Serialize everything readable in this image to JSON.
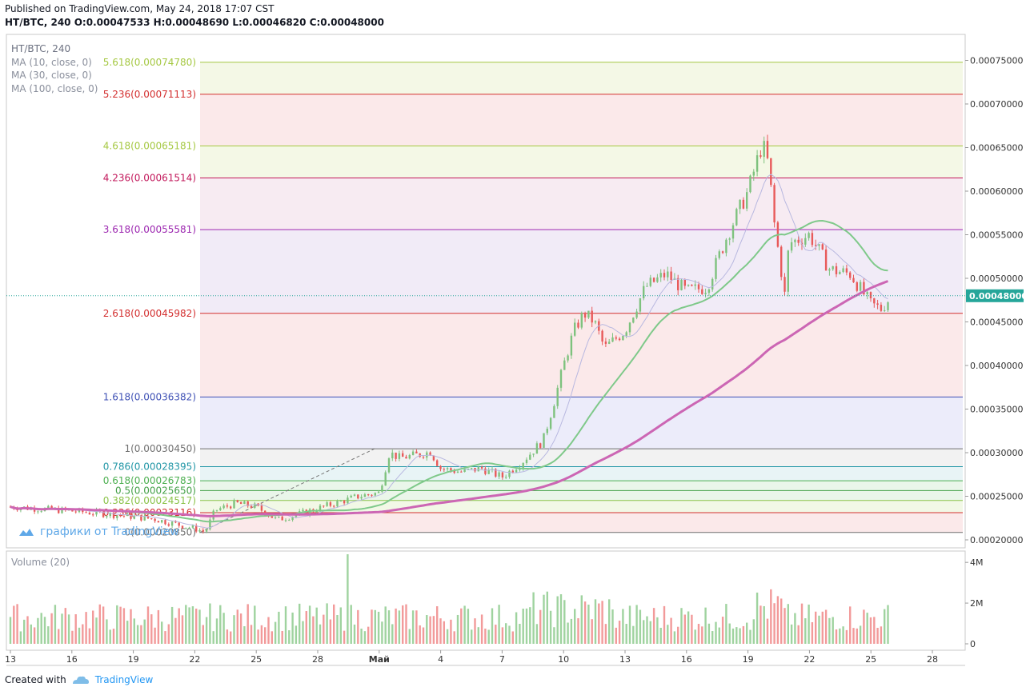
{
  "header": {
    "published": "Published on TradingView.com, May 24, 2018 17:07 CST",
    "ohlc_line": "HT/BTC, 240  O:0.00047533 H:0.00048690 L:0.00046820 C:0.00048000"
  },
  "legend": {
    "symbol": "HT/BTC, 240",
    "ma10": "MA (10, close, 0)",
    "ma30": "MA (30, close, 0)",
    "ma100": "MA (100, close, 0)",
    "volume": "Volume (20)"
  },
  "watermark": "графики от TradingView",
  "footer": {
    "created_with": "Created with",
    "brand": "TradingView"
  },
  "colors": {
    "up": "#7ec27e",
    "down": "#e85a5a",
    "ma10": "#b8b8e0",
    "ma30": "#7fc98a",
    "ma100": "#cc66b4",
    "last_price": "#26a69a"
  },
  "chart_data": {
    "type": "candlestick",
    "symbol": "HT/BTC",
    "interval": "240",
    "y_axis_ticks": [
      "0.00075000",
      "0.00070000",
      "0.00065000",
      "0.00060000",
      "0.00055000",
      "0.00050000",
      "0.00045000",
      "0.00040000",
      "0.00035000",
      "0.00030000",
      "0.00025000",
      "0.00020000"
    ],
    "ylim": [
      0.00019,
      0.00077
    ],
    "x_axis_ticks": [
      "13",
      "16",
      "19",
      "22",
      "25",
      "28",
      "Май",
      "4",
      "7",
      "10",
      "13",
      "16",
      "19",
      "22",
      "25",
      "28"
    ],
    "last_price_label": "0.00048000",
    "fib_levels": [
      {
        "label": "5.618(0.00074780)",
        "ratio": 5.618,
        "price": 0.0007478,
        "color": "#a5c842"
      },
      {
        "label": "5.236(0.00071113)",
        "ratio": 5.236,
        "price": 0.00071113,
        "color": "#d32f2f"
      },
      {
        "label": "4.618(0.00065181)",
        "ratio": 4.618,
        "price": 0.00065181,
        "color": "#a5c842"
      },
      {
        "label": "4.236(0.00061514)",
        "ratio": 4.236,
        "price": 0.00061514,
        "color": "#c2185b"
      },
      {
        "label": "3.618(0.00055581)",
        "ratio": 3.618,
        "price": 0.00055581,
        "color": "#9c27b0"
      },
      {
        "label": "2.618(0.00045982)",
        "ratio": 2.618,
        "price": 0.00045982,
        "color": "#d32f2f"
      },
      {
        "label": "1.618(0.00036382)",
        "ratio": 1.618,
        "price": 0.00036382,
        "color": "#3f51b5"
      },
      {
        "label": "1(0.00030450)",
        "ratio": 1,
        "price": 0.0003045,
        "color": "#707070"
      },
      {
        "label": "0.786(0.00028395)",
        "ratio": 0.786,
        "price": 0.00028395,
        "color": "#2196a6"
      },
      {
        "label": "0.618(0.00026783)",
        "ratio": 0.618,
        "price": 0.00026783,
        "color": "#4caf50"
      },
      {
        "label": "0.5(0.00025650)",
        "ratio": 0.5,
        "price": 0.0002565,
        "color": "#43a047"
      },
      {
        "label": "0.382(0.00024517)",
        "ratio": 0.382,
        "price": 0.00024517,
        "color": "#8bc34a"
      },
      {
        "label": "0.236(0.00023116)",
        "ratio": 0.236,
        "price": 0.00023116,
        "color": "#d32f2f"
      },
      {
        "label": "0(0.00020850)",
        "ratio": 0,
        "price": 0.0002085,
        "color": "#707070"
      }
    ],
    "price_path": [
      [
        0,
        0.000238
      ],
      [
        3,
        0.000233
      ],
      [
        5,
        0.000229
      ],
      [
        7,
        0.000224
      ],
      [
        9,
        0.000213
      ],
      [
        9.5,
        0.000209
      ],
      [
        10,
        0.000234
      ],
      [
        11,
        0.000242
      ],
      [
        12,
        0.000238
      ],
      [
        13,
        0.000223
      ],
      [
        14,
        0.000229
      ],
      [
        15,
        0.000236
      ],
      [
        16,
        0.000243
      ],
      [
        17,
        0.00025
      ],
      [
        18,
        0.000254
      ],
      [
        18.5,
        0.0003
      ],
      [
        19,
        0.000294
      ],
      [
        20,
        0.000298
      ],
      [
        20.5,
        0.000301
      ],
      [
        21,
        0.000282
      ],
      [
        22,
        0.000278
      ],
      [
        23,
        0.000282
      ],
      [
        24,
        0.000272
      ],
      [
        25,
        0.00029
      ],
      [
        26,
        0.000314
      ],
      [
        26.5,
        0.000355
      ],
      [
        27,
        0.0004
      ],
      [
        27.5,
        0.00044
      ],
      [
        28,
        0.00046
      ],
      [
        28.5,
        0.00045
      ],
      [
        29,
        0.00042
      ],
      [
        30,
        0.00044
      ],
      [
        31,
        0.00049
      ],
      [
        32,
        0.000505
      ],
      [
        33,
        0.000485
      ],
      [
        34,
        0.00049
      ],
      [
        35,
        0.00055
      ],
      [
        36,
        0.0006
      ],
      [
        36.7,
        0.000655
      ],
      [
        37,
        0.00063
      ],
      [
        37.3,
        0.00056
      ],
      [
        37.8,
        0.00048
      ],
      [
        38,
        0.00054
      ],
      [
        39,
        0.00055
      ],
      [
        40,
        0.00051
      ],
      [
        41,
        0.000505
      ],
      [
        42,
        0.00047
      ],
      [
        42.5,
        0.000465
      ],
      [
        43,
        0.00048
      ]
    ],
    "volume": {
      "y_axis_ticks": [
        "4M",
        "2M",
        "0"
      ],
      "ylim": [
        0,
        4400000
      ],
      "bars_count": 256
    }
  }
}
